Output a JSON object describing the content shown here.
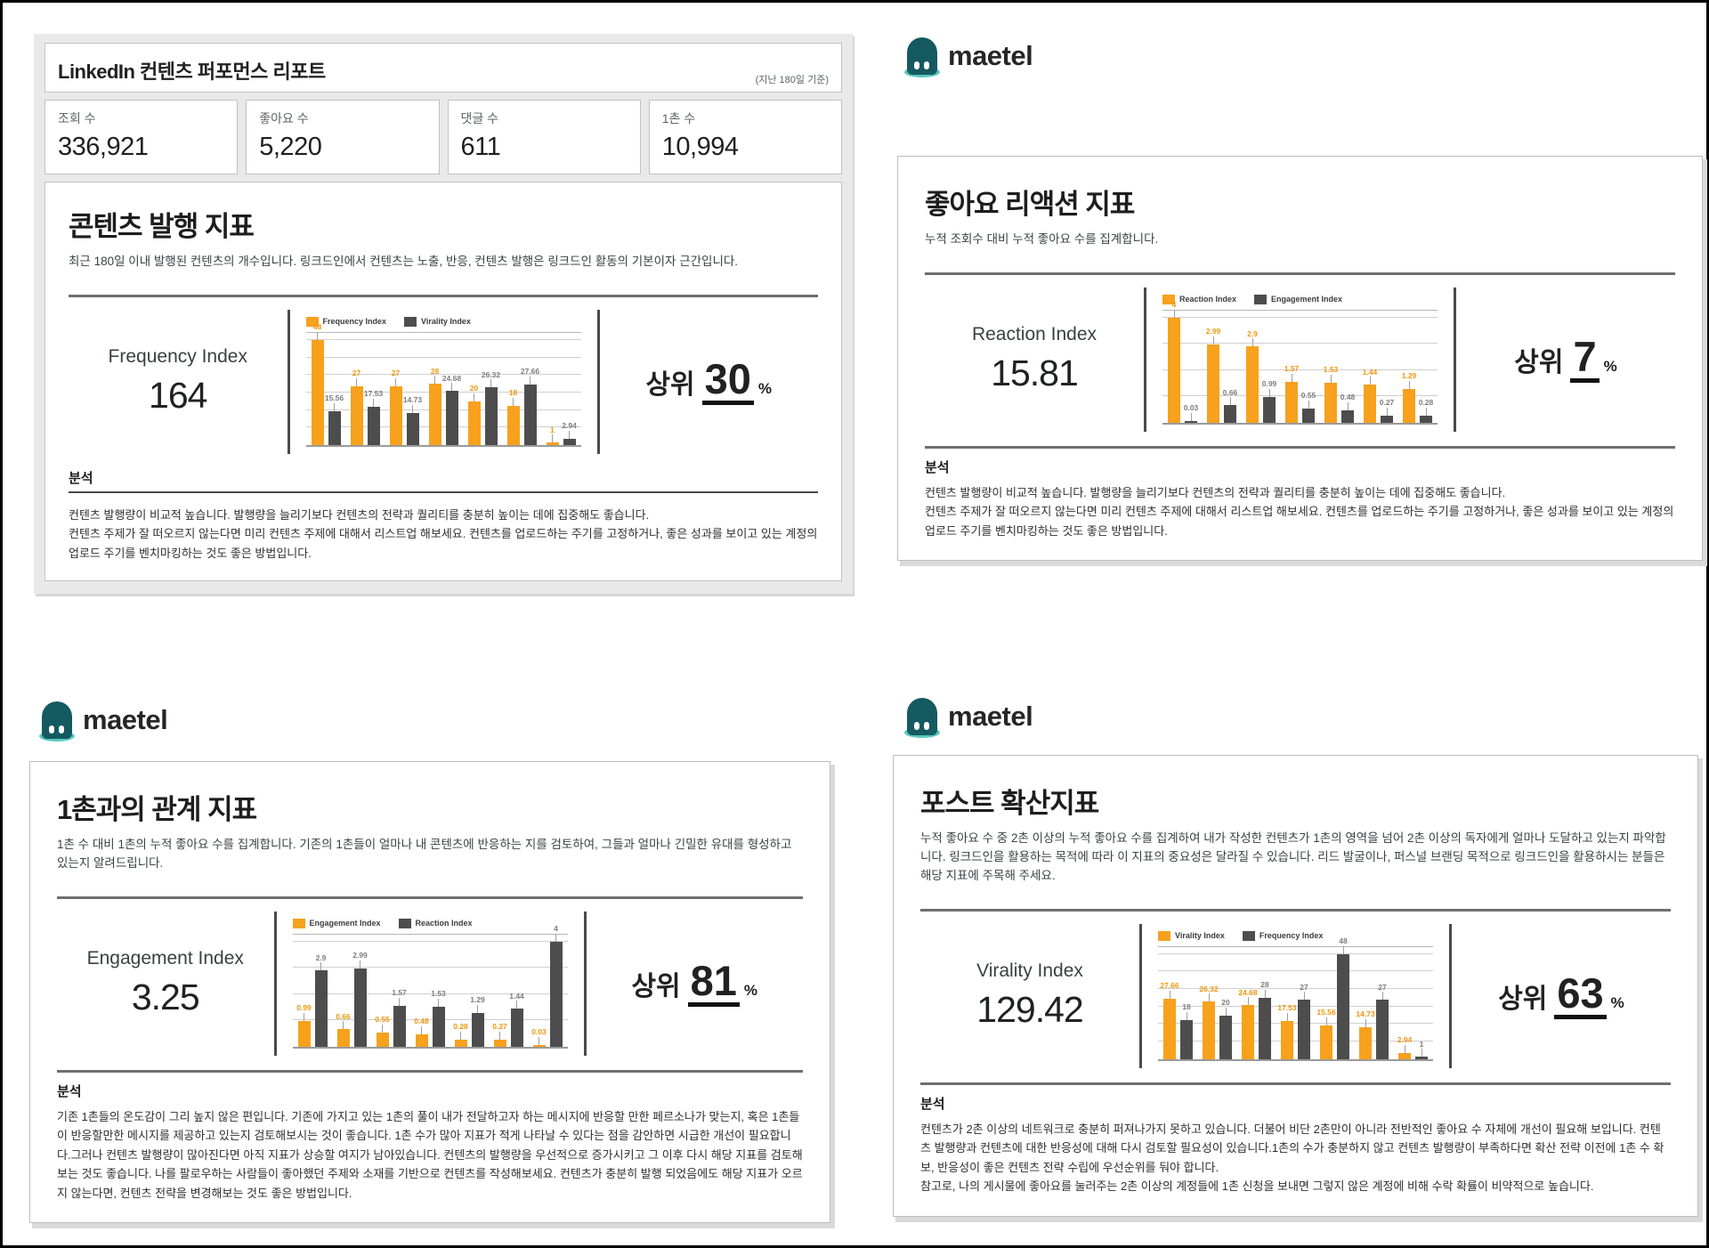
{
  "brand": {
    "name": "maetel"
  },
  "report": {
    "title": "LinkedIn 컨텐츠 퍼포먼스 리포트",
    "period_note": "(지난 180일 기준)",
    "stats": [
      {
        "label": "조회 수",
        "value": "336,921"
      },
      {
        "label": "좋아요 수",
        "value": "5,220"
      },
      {
        "label": "댓글 수",
        "value": "611"
      },
      {
        "label": "1촌 수",
        "value": "10,994"
      }
    ]
  },
  "panels": [
    {
      "title": "콘텐츠 발행 지표",
      "description": "최근 180일 이내 발행된 컨텐츠의 개수입니다. 링크드인에서 컨텐츠는 노출, 반응, 컨텐츠 발행은 링크드인 활동의 기본이자 근간입니다.",
      "metric_label": "Frequency Index",
      "metric_value": "164",
      "rank_prefix": "상위",
      "rank_value": "30",
      "rank_unit": "%",
      "analysis_title": "분석",
      "analysis": "컨텐츠 발행량이 비교적 높습니다. 발행량을 늘리기보다 컨텐츠의 전략과 퀄리티를 충분히 높이는 데에 집중해도 좋습니다.\n컨텐츠 주제가 잘 떠오르지 않는다면 미리 컨텐츠 주제에 대해서 리스트업 해보세요. 컨텐츠를 업로드하는 주기를 고정하거나, 좋은 성과를 보이고 있는 계정의 업로드 주기를 벤치마킹하는 것도 좋은 방법입니다."
    },
    {
      "title": "좋아요 리액션 지표",
      "description": "누적 조회수 대비 누적 좋아요 수를 집계합니다.",
      "metric_label": "Reaction Index",
      "metric_value": "15.81",
      "rank_prefix": "상위",
      "rank_value": "7",
      "rank_unit": "%",
      "analysis_title": "분석",
      "analysis": "컨텐츠 발행량이 비교적 높습니다. 발행량을 늘리기보다 컨텐츠의 전략과 퀄리티를 충분히 높이는 데에 집중해도 좋습니다.\n컨텐츠 주제가 잘 떠오르지 않는다면 미리 컨텐츠 주제에 대해서 리스트업 해보세요. 컨텐츠를 업로드하는 주기를 고정하거나, 좋은 성과를 보이고 있는 계정의 업로드 주기를 벤치마킹하는 것도 좋은 방법입니다."
    },
    {
      "title": "1촌과의 관계 지표",
      "description": "1촌 수 대비 1촌의 누적 좋아요 수를 집계합니다. 기존의 1촌들이 얼마나 내 콘텐츠에 반응하는 지를 검토하여, 그들과 얼마나 긴밀한 유대를 형성하고 있는지 알려드립니다.",
      "metric_label": "Engagement Index",
      "metric_value": "3.25",
      "rank_prefix": "상위",
      "rank_value": "81",
      "rank_unit": "%",
      "analysis_title": "분석",
      "analysis": "기존 1촌들의 온도감이 그리 높지 않은 편입니다. 기존에 가지고 있는 1촌의 풀이 내가 전달하고자 하는 메시지에 반응할 만한 페르소나가 맞는지, 혹은 1촌들이 반응할만한 메시지를 제공하고 있는지 검토해보시는 것이 좋습니다. 1촌 수가 많아 지표가 적게 나타날 수 있다는 점을 감안하면 시급한 개선이 필요합니다.그러나 컨텐츠 발행량이 많아진다면 아직 지표가 상승할 여지가 남아있습니다. 컨텐츠의 발행량을 우선적으로 증가시키고 그 이후 다시 해당 지표를 검토해보는 것도 좋습니다. 나를 팔로우하는 사람들이 좋아했던 주제와 소재를 기반으로 컨텐츠를 작성해보세요. 컨텐츠가 충분히 발행 되었음에도 해당 지표가 오르지 않는다면, 컨텐츠 전략을 변경해보는 것도 좋은 방법입니다."
    },
    {
      "title": "포스트 확산지표",
      "description": "누적 좋아요 수 중 2촌 이상의 누적 좋아요 수를 집계하여 내가 작성한 컨텐츠가 1촌의 영역을 넘어 2촌 이상의 독자에게 얼마나 도달하고 있는지 파악합니다. 링크드인을 활용하는 목적에 따라 이 지표의 중요성은 달라질 수 있습니다. 리드 발굴이나, 퍼스널 브랜딩 목적으로 링크드인을 활용하시는 분들은 해당 지표에 주목해 주세요.",
      "metric_label": "Virality Index",
      "metric_value": "129.42",
      "rank_prefix": "상위",
      "rank_value": "63",
      "rank_unit": "%",
      "analysis_title": "분석",
      "analysis": "컨텐츠가 2촌 이상의 네트워크로 충분히 퍼져나가지 못하고 있습니다. 더불어 비단 2촌만이 아니라 전반적인 좋아요 수 자체에 개선이 필요해 보입니다. 컨텐츠 발행량과 컨텐츠에 대한 반응성에 대해 다시 검토할 필요성이 있습니다.1촌의 수가 충분하지 않고 컨텐츠 발행량이 부족하다면 확산 전략 이전에 1촌 수 확보, 반응성이 좋은 컨텐츠 전략 수립에 우선순위를 둬야 합니다.\n참고로, 나의 게시물에 좋아요를 눌러주는 2촌 이상의 계정들에 1촌 신청을 보내면 그렇지 않은 계정에 비해 수락 확률이 비약적으로 높습니다."
    }
  ],
  "colors": {
    "accent_orange": "#F7A11C",
    "orange_label": "#F0970E",
    "bar_gray": "#4D4D4D",
    "gray_label": "#7C7C7C",
    "brand_teal_dark": "#155A60",
    "brand_teal_light": "#5BC8BD"
  },
  "chart_data": [
    {
      "type": "bar",
      "title": "콘텐츠 발행 지표",
      "legend_position": "top",
      "grid": true,
      "ylim": [
        0,
        48
      ],
      "grid_step": 8,
      "series": [
        {
          "name": "Frequency Index",
          "color": "#F7A11C",
          "label_color": "#F0970E",
          "values": [
            "48",
            "27",
            "27",
            "28",
            "20",
            "18",
            "1"
          ]
        },
        {
          "name": "Virality Index",
          "color": "#4D4D4D",
          "label_color": "#7C7C7C",
          "values": [
            "15.56",
            "17.53",
            "14.73",
            "24.68",
            "26.32",
            "27.66",
            "2.94"
          ]
        }
      ]
    },
    {
      "type": "bar",
      "title": "좋아요 리액션 지표",
      "legend_position": "top",
      "grid": true,
      "ylim": [
        0,
        4
      ],
      "grid_step": 1,
      "series": [
        {
          "name": "Reaction Index",
          "color": "#F7A11C",
          "label_color": "#F0970E",
          "values": [
            "4",
            "2.99",
            "2.9",
            "1.57",
            "1.53",
            "1.44",
            "1.29"
          ]
        },
        {
          "name": "Engagement Index",
          "color": "#4D4D4D",
          "label_color": "#7C7C7C",
          "values": [
            "0.03",
            "0.66",
            "0.99",
            "0.55",
            "0.48",
            "0.27",
            "0.28"
          ]
        }
      ]
    },
    {
      "type": "bar",
      "title": "1촌과의 관계 지표",
      "legend_position": "top",
      "grid": true,
      "ylim": [
        0,
        4
      ],
      "grid_step": 1,
      "series": [
        {
          "name": "Engagement Index",
          "color": "#F7A11C",
          "label_color": "#F0970E",
          "values": [
            "0.99",
            "0.66",
            "0.55",
            "0.48",
            "0.28",
            "0.27",
            "0.03"
          ]
        },
        {
          "name": "Reaction Index",
          "color": "#4D4D4D",
          "label_color": "#7C7C7C",
          "values": [
            "2.9",
            "2.99",
            "1.57",
            "1.53",
            "1.29",
            "1.44",
            "4"
          ]
        }
      ]
    },
    {
      "type": "bar",
      "title": "포스트 확산지표",
      "legend_position": "top",
      "grid": true,
      "ylim": [
        0,
        48
      ],
      "grid_step": 8,
      "series": [
        {
          "name": "Virality Index",
          "color": "#F7A11C",
          "label_color": "#F0970E",
          "values": [
            "27.66",
            "26.32",
            "24.68",
            "17.53",
            "15.56",
            "14.73",
            "2.94"
          ]
        },
        {
          "name": "Frequency Index",
          "color": "#4D4D4D",
          "label_color": "#7C7C7C",
          "values": [
            "18",
            "20",
            "28",
            "27",
            "48",
            "27",
            "1"
          ]
        }
      ]
    }
  ]
}
